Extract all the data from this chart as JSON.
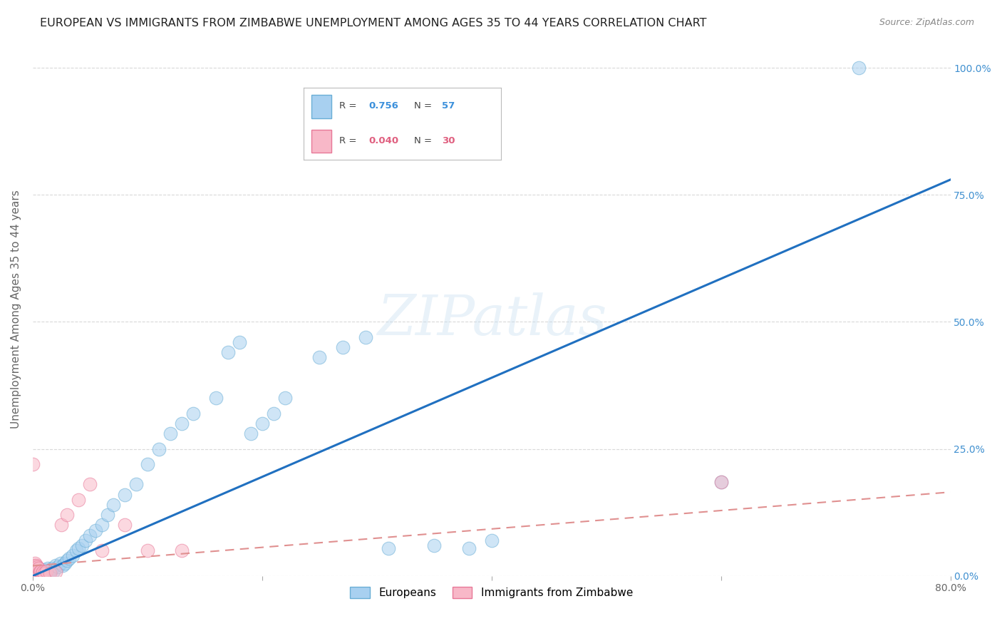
{
  "title": "EUROPEAN VS IMMIGRANTS FROM ZIMBABWE UNEMPLOYMENT AMONG AGES 35 TO 44 YEARS CORRELATION CHART",
  "source": "Source: ZipAtlas.com",
  "ylabel": "Unemployment Among Ages 35 to 44 years",
  "xlim": [
    0.0,
    0.8
  ],
  "ylim": [
    0.0,
    1.05
  ],
  "europeans_color": "#a8d0f0",
  "europeans_edge": "#6aaed6",
  "zimbabwe_color": "#f8b8c8",
  "zimbabwe_edge": "#e87898",
  "regression_blue": "#2070c0",
  "regression_pink": "#e09090",
  "watermark_text": "ZIPatlas",
  "background_color": "#ffffff",
  "grid_color": "#d0d0d0",
  "right_tick_color": "#4090d0",
  "legend_R_blue_val": "0.756",
  "legend_N_blue_val": "57",
  "legend_R_pink_val": "0.040",
  "legend_N_pink_val": "30",
  "euro_x": [
    0.002,
    0.003,
    0.004,
    0.005,
    0.006,
    0.007,
    0.008,
    0.009,
    0.01,
    0.011,
    0.012,
    0.013,
    0.014,
    0.015,
    0.016,
    0.017,
    0.018,
    0.02,
    0.022,
    0.024,
    0.026,
    0.028,
    0.03,
    0.032,
    0.035,
    0.038,
    0.04,
    0.043,
    0.046,
    0.05,
    0.055,
    0.06,
    0.065,
    0.07,
    0.08,
    0.09,
    0.1,
    0.11,
    0.12,
    0.13,
    0.14,
    0.16,
    0.17,
    0.18,
    0.19,
    0.2,
    0.21,
    0.22,
    0.25,
    0.27,
    0.29,
    0.31,
    0.35,
    0.38,
    0.4,
    0.6,
    0.72
  ],
  "euro_y": [
    0.005,
    0.008,
    0.005,
    0.01,
    0.008,
    0.005,
    0.01,
    0.008,
    0.012,
    0.01,
    0.01,
    0.015,
    0.008,
    0.01,
    0.012,
    0.015,
    0.01,
    0.02,
    0.018,
    0.025,
    0.02,
    0.025,
    0.03,
    0.035,
    0.04,
    0.05,
    0.055,
    0.06,
    0.07,
    0.08,
    0.09,
    0.1,
    0.12,
    0.14,
    0.16,
    0.18,
    0.22,
    0.25,
    0.28,
    0.3,
    0.32,
    0.35,
    0.44,
    0.46,
    0.28,
    0.3,
    0.32,
    0.35,
    0.43,
    0.45,
    0.47,
    0.055,
    0.06,
    0.055,
    0.07,
    0.185,
    1.0
  ],
  "zimb_x": [
    0.001,
    0.001,
    0.001,
    0.002,
    0.002,
    0.002,
    0.003,
    0.003,
    0.004,
    0.004,
    0.005,
    0.005,
    0.006,
    0.007,
    0.008,
    0.009,
    0.01,
    0.012,
    0.015,
    0.02,
    0.025,
    0.03,
    0.04,
    0.05,
    0.06,
    0.08,
    0.1,
    0.13,
    0.6,
    0.0
  ],
  "zimb_y": [
    0.005,
    0.01,
    0.02,
    0.005,
    0.015,
    0.025,
    0.008,
    0.02,
    0.01,
    0.018,
    0.005,
    0.015,
    0.008,
    0.01,
    0.005,
    0.008,
    0.005,
    0.01,
    0.005,
    0.008,
    0.1,
    0.12,
    0.15,
    0.18,
    0.05,
    0.1,
    0.05,
    0.05,
    0.185,
    0.22
  ],
  "blue_line_x": [
    0.0,
    0.8
  ],
  "blue_line_y": [
    0.0,
    0.78
  ],
  "pink_line_x": [
    0.0,
    0.8
  ],
  "pink_line_y": [
    0.02,
    0.165
  ]
}
